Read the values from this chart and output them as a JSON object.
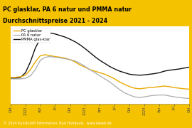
{
  "title_line1": "PC glasklar, PA 6 natur und PMMA natur",
  "title_line2": "Durchschnittspreise 2021 - 2024",
  "title_bg": "#f5c200",
  "footer": "© 2024 Kunststoff Information, Bad Homburg · www.kiweb.de",
  "footer_bg": "#7a7a7a",
  "plot_bg": "#efefef",
  "plot_frame_bg": "#ffffff",
  "legend": [
    "PC glasklar",
    "PA 6 natur",
    "PMMA glas-klar"
  ],
  "colors": {
    "PC": "#e8a800",
    "PA": "#aaaaaa",
    "PMMA": "#111111"
  },
  "x_labels": [
    "Okt",
    "2022",
    "Apr",
    "Jul",
    "Okt",
    "2023",
    "Apr",
    "Jul",
    "Okt",
    "2024",
    "Apr",
    "Jul",
    "Okt"
  ],
  "n_points": 37,
  "PC_glasklar": [
    1.85,
    1.85,
    1.87,
    1.92,
    2.1,
    2.35,
    2.55,
    2.58,
    2.55,
    2.52,
    2.5,
    2.47,
    2.42,
    2.35,
    2.25,
    2.18,
    2.1,
    2.05,
    2.0,
    1.95,
    1.88,
    1.8,
    1.7,
    1.62,
    1.55,
    1.5,
    1.48,
    1.5,
    1.52,
    1.53,
    1.55,
    1.57,
    1.55,
    1.52,
    1.5,
    1.48,
    1.47
  ],
  "PA6_natur": [
    1.8,
    1.8,
    1.8,
    1.82,
    1.9,
    2.1,
    2.4,
    2.5,
    2.52,
    2.5,
    2.48,
    2.45,
    2.42,
    2.38,
    2.3,
    2.2,
    2.1,
    2.0,
    1.9,
    1.8,
    1.7,
    1.58,
    1.45,
    1.35,
    1.28,
    1.22,
    1.2,
    1.22,
    1.25,
    1.27,
    1.28,
    1.28,
    1.25,
    1.22,
    1.2,
    1.18,
    1.17
  ],
  "PMMA_glasklar": [
    1.82,
    1.82,
    1.85,
    2.0,
    2.35,
    2.8,
    3.1,
    3.22,
    3.28,
    3.25,
    3.2,
    3.15,
    3.08,
    3.0,
    2.9,
    2.78,
    2.65,
    2.52,
    2.4,
    2.3,
    2.2,
    2.12,
    2.05,
    2.0,
    1.95,
    1.93,
    1.92,
    1.93,
    1.95,
    1.97,
    2.0,
    2.05,
    2.08,
    2.1,
    2.12,
    2.15,
    2.18
  ],
  "ylim": [
    1.0,
    3.5
  ],
  "x_tick_positions": [
    0,
    3,
    6,
    9,
    12,
    15,
    18,
    21,
    24,
    27,
    30,
    33,
    36
  ],
  "title_fontsize": 5.8,
  "tick_fontsize": 3.5,
  "legend_fontsize": 3.8,
  "footer_fontsize": 3.5
}
